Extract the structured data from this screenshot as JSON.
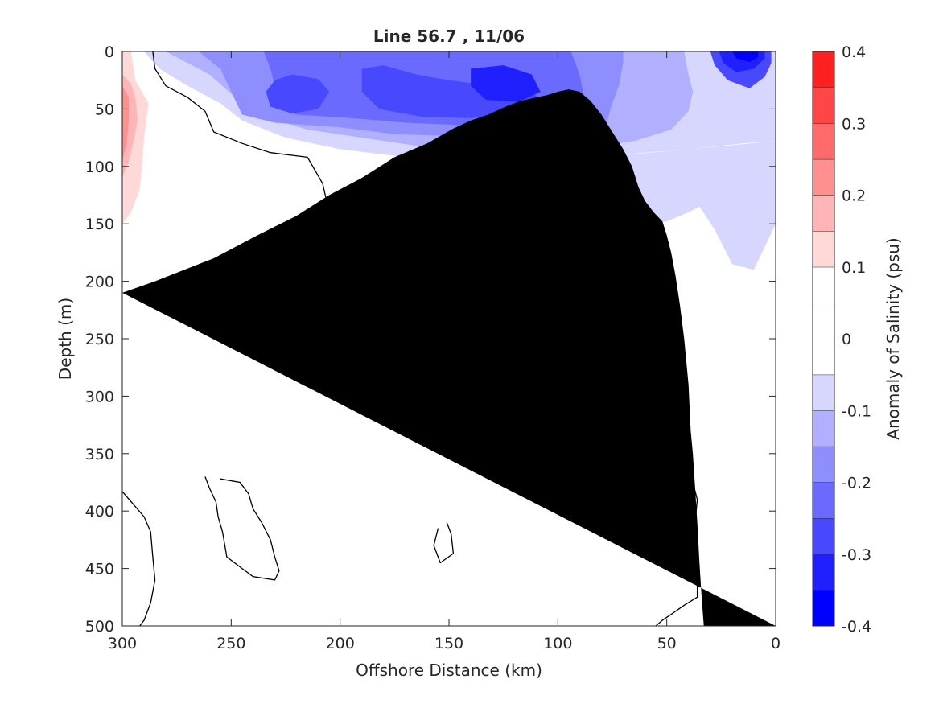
{
  "chart_data": {
    "type": "heatmap",
    "title": "Line 56.7 , 11/06",
    "xlabel": "Offshore Distance (km)",
    "ylabel": "Depth (m)",
    "xlim": [
      300,
      0
    ],
    "ylim": [
      500,
      0
    ],
    "x_ticks": [
      "300",
      "250",
      "200",
      "150",
      "100",
      "50",
      "0"
    ],
    "x_tick_values": [
      300,
      250,
      200,
      150,
      100,
      50,
      0
    ],
    "y_ticks": [
      "0",
      "50",
      "100",
      "150",
      "200",
      "250",
      "300",
      "350",
      "400",
      "450",
      "500"
    ],
    "y_tick_values": [
      0,
      50,
      100,
      150,
      200,
      250,
      300,
      350,
      400,
      450,
      500
    ],
    "colorbar": {
      "label": "Anomaly of Salinity (psu)",
      "min": -0.4,
      "max": 0.4,
      "tick_labels": [
        "0.4",
        "0.3",
        "0.2",
        "0.1",
        "0",
        "-0.1",
        "-0.2",
        "-0.3",
        "-0.4"
      ],
      "tick_values": [
        0.4,
        0.3,
        0.2,
        0.1,
        0,
        -0.1,
        -0.2,
        -0.3,
        -0.4
      ],
      "levels": [
        -0.4,
        -0.35,
        -0.3,
        -0.25,
        -0.2,
        -0.15,
        -0.1,
        -0.05,
        0.05,
        0.1,
        0.15,
        0.2,
        0.25,
        0.3,
        0.35,
        0.4
      ],
      "colors": [
        "#0000ff",
        "#2020ff",
        "#4848ff",
        "#6a6aff",
        "#8e8eff",
        "#b0b0ff",
        "#d6d6ff",
        "#ffffff",
        "#ffffff",
        "#ffd8d8",
        "#ffb5b5",
        "#ff9090",
        "#ff6a6a",
        "#ff4646",
        "#ff2020",
        "#ff0000"
      ]
    },
    "regions": [
      {
        "level": -0.075,
        "points": [
          [
            290,
            0
          ],
          [
            283,
            15
          ],
          [
            270,
            30
          ],
          [
            255,
            45
          ],
          [
            245,
            60
          ],
          [
            225,
            75
          ],
          [
            200,
            85
          ],
          [
            170,
            92
          ],
          [
            135,
            95
          ],
          [
            110,
            97
          ],
          [
            80,
            92
          ],
          [
            60,
            88
          ],
          [
            40,
            85
          ],
          [
            15,
            80
          ],
          [
            0,
            78
          ],
          [
            0,
            0
          ]
        ]
      },
      {
        "level": -0.125,
        "points": [
          [
            280,
            0
          ],
          [
            260,
            20
          ],
          [
            248,
            40
          ],
          [
            238,
            55
          ],
          [
            215,
            68
          ],
          [
            190,
            75
          ],
          [
            165,
            82
          ],
          [
            130,
            85
          ],
          [
            105,
            87
          ],
          [
            80,
            82
          ],
          [
            65,
            78
          ],
          [
            48,
            68
          ],
          [
            40,
            52
          ],
          [
            38,
            35
          ],
          [
            40,
            20
          ],
          [
            42,
            0
          ]
        ]
      },
      {
        "level": -0.175,
        "points": [
          [
            265,
            0
          ],
          [
            255,
            15
          ],
          [
            250,
            35
          ],
          [
            245,
            55
          ],
          [
            230,
            62
          ],
          [
            200,
            66
          ],
          [
            175,
            72
          ],
          [
            140,
            74
          ],
          [
            110,
            76
          ],
          [
            90,
            72
          ],
          [
            78,
            65
          ],
          [
            75,
            45
          ],
          [
            72,
            30
          ],
          [
            70,
            10
          ],
          [
            70,
            0
          ]
        ]
      },
      {
        "level": -0.225,
        "points": [
          [
            235,
            0
          ],
          [
            232,
            15
          ],
          [
            230,
            30
          ],
          [
            232,
            45
          ],
          [
            220,
            55
          ],
          [
            195,
            58
          ],
          [
            170,
            62
          ],
          [
            145,
            64
          ],
          [
            115,
            66
          ],
          [
            100,
            64
          ],
          [
            92,
            55
          ],
          [
            88,
            40
          ],
          [
            90,
            20
          ],
          [
            94,
            0
          ]
        ]
      },
      {
        "level": -0.275,
        "points": [
          [
            230,
            25
          ],
          [
            222,
            20
          ],
          [
            210,
            24
          ],
          [
            205,
            35
          ],
          [
            210,
            50
          ],
          [
            222,
            54
          ],
          [
            232,
            48
          ],
          [
            234,
            35
          ]
        ]
      },
      {
        "level": -0.275,
        "points": [
          [
            190,
            15
          ],
          [
            180,
            12
          ],
          [
            165,
            20
          ],
          [
            150,
            25
          ],
          [
            130,
            30
          ],
          [
            112,
            35
          ],
          [
            105,
            48
          ],
          [
            115,
            55
          ],
          [
            140,
            58
          ],
          [
            162,
            57
          ],
          [
            182,
            50
          ],
          [
            190,
            35
          ]
        ]
      },
      {
        "level": -0.325,
        "points": [
          [
            140,
            15
          ],
          [
            125,
            12
          ],
          [
            112,
            20
          ],
          [
            108,
            35
          ],
          [
            118,
            44
          ],
          [
            133,
            42
          ],
          [
            140,
            30
          ]
        ]
      },
      {
        "level": -0.275,
        "points": [
          [
            30,
            0
          ],
          [
            28,
            12
          ],
          [
            22,
            25
          ],
          [
            12,
            32
          ],
          [
            5,
            22
          ],
          [
            2,
            10
          ],
          [
            2,
            0
          ]
        ]
      },
      {
        "level": -0.325,
        "points": [
          [
            26,
            0
          ],
          [
            24,
            10
          ],
          [
            18,
            18
          ],
          [
            10,
            15
          ],
          [
            5,
            6
          ],
          [
            5,
            0
          ]
        ]
      },
      {
        "level": -0.375,
        "points": [
          [
            20,
            0
          ],
          [
            18,
            6
          ],
          [
            12,
            9
          ],
          [
            8,
            5
          ],
          [
            8,
            0
          ]
        ]
      },
      {
        "level": -0.075,
        "points": [
          [
            140,
            95
          ],
          [
            138,
            130
          ],
          [
            130,
            150
          ],
          [
            100,
            150
          ],
          [
            70,
            150
          ],
          [
            50,
            148
          ],
          [
            40,
            140
          ],
          [
            35,
            135
          ],
          [
            28,
            155
          ],
          [
            20,
            185
          ],
          [
            10,
            190
          ],
          [
            0,
            150
          ],
          [
            0,
            78
          ],
          [
            40,
            85
          ],
          [
            80,
            92
          ],
          [
            110,
            97
          ]
        ]
      },
      {
        "level": -0.075,
        "points": [
          [
            78,
            300
          ],
          [
            72,
            292
          ],
          [
            66,
            300
          ],
          [
            65,
            330
          ],
          [
            66,
            360
          ],
          [
            67,
            390
          ],
          [
            67,
            420
          ],
          [
            63,
            420
          ],
          [
            60,
            400
          ],
          [
            55,
            370
          ],
          [
            55,
            340
          ],
          [
            58,
            310
          ]
        ]
      },
      {
        "level": 0.075,
        "points": [
          [
            300,
            0
          ],
          [
            300,
            195
          ],
          [
            293,
            185
          ],
          [
            290,
            160
          ],
          [
            280,
            140
          ],
          [
            268,
            140
          ],
          [
            258,
            142
          ],
          [
            242,
            130
          ],
          [
            242,
            115
          ],
          [
            250,
            105
          ],
          [
            262,
            103
          ],
          [
            270,
            98
          ],
          [
            273,
            80
          ],
          [
            280,
            65
          ],
          [
            283,
            50
          ],
          [
            288,
            30
          ],
          [
            290,
            0
          ]
        ]
      },
      {
        "level": 0.125,
        "points": [
          [
            300,
            0
          ],
          [
            300,
            150
          ],
          [
            296,
            140
          ],
          [
            292,
            120
          ],
          [
            291,
            100
          ],
          [
            290,
            75
          ],
          [
            288,
            45
          ],
          [
            294,
            25
          ],
          [
            296,
            0
          ]
        ]
      },
      {
        "level": 0.175,
        "points": [
          [
            300,
            20
          ],
          [
            296,
            28
          ],
          [
            294,
            40
          ],
          [
            293,
            60
          ],
          [
            295,
            80
          ],
          [
            297,
            95
          ],
          [
            300,
            110
          ]
        ]
      },
      {
        "level": 0.225,
        "points": [
          [
            300,
            30
          ],
          [
            297,
            40
          ],
          [
            297,
            60
          ],
          [
            298,
            80
          ],
          [
            300,
            95
          ]
        ]
      }
    ],
    "contours_zero": [
      [
        [
          286,
          0
        ],
        [
          285,
          15
        ],
        [
          280,
          30
        ],
        [
          270,
          40
        ],
        [
          262,
          52
        ],
        [
          258,
          70
        ],
        [
          245,
          80
        ],
        [
          232,
          88
        ],
        [
          215,
          92
        ],
        [
          208,
          115
        ],
        [
          205,
          140
        ],
        [
          201,
          160
        ],
        [
          200,
          175
        ],
        [
          203,
          185
        ],
        [
          205,
          200
        ],
        [
          207,
          215
        ],
        [
          205,
          222
        ],
        [
          198,
          218
        ],
        [
          192,
          212
        ],
        [
          188,
          200
        ],
        [
          180,
          196
        ],
        [
          170,
          195
        ],
        [
          160,
          206
        ],
        [
          150,
          218
        ],
        [
          140,
          228
        ],
        [
          135,
          245
        ],
        [
          132,
          265
        ],
        [
          128,
          280
        ],
        [
          122,
          300
        ],
        [
          115,
          310
        ],
        [
          108,
          315
        ],
        [
          105,
          322
        ],
        [
          100,
          333
        ],
        [
          92,
          340
        ],
        [
          86,
          348
        ],
        [
          78,
          355
        ],
        [
          70,
          352
        ],
        [
          64,
          358
        ],
        [
          57,
          364
        ],
        [
          45,
          368
        ],
        [
          38,
          375
        ],
        [
          36,
          390
        ],
        [
          37,
          410
        ],
        [
          40,
          425
        ],
        [
          38,
          440
        ],
        [
          36,
          460
        ],
        [
          36,
          475
        ],
        [
          42,
          482
        ],
        [
          48,
          490
        ],
        [
          52,
          495
        ],
        [
          55,
          500
        ]
      ],
      [
        [
          151,
          410
        ],
        [
          149,
          420
        ],
        [
          148,
          437
        ],
        [
          154,
          445
        ],
        [
          157,
          430
        ],
        [
          155,
          415
        ]
      ],
      [
        [
          142,
          203
        ],
        [
          137,
          203
        ],
        [
          132,
          215
        ],
        [
          129,
          230
        ],
        [
          128,
          248
        ],
        [
          129,
          262
        ],
        [
          130,
          278
        ],
        [
          138,
          284
        ],
        [
          148,
          282
        ],
        [
          152,
          268
        ],
        [
          150,
          250
        ],
        [
          150,
          232
        ],
        [
          148,
          215
        ]
      ],
      [
        [
          300,
          383
        ],
        [
          295,
          394
        ],
        [
          290,
          405
        ],
        [
          287,
          418
        ],
        [
          286,
          440
        ],
        [
          285,
          460
        ],
        [
          287,
          480
        ],
        [
          290,
          495
        ],
        [
          292,
          500
        ]
      ],
      [
        [
          262,
          370
        ],
        [
          260,
          380
        ],
        [
          257,
          392
        ],
        [
          256,
          405
        ],
        [
          254,
          418
        ],
        [
          252,
          440
        ],
        [
          245,
          450
        ],
        [
          240,
          457
        ],
        [
          230,
          460
        ],
        [
          228,
          452
        ],
        [
          230,
          440
        ],
        [
          232,
          425
        ],
        [
          236,
          410
        ],
        [
          240,
          398
        ],
        [
          242,
          385
        ],
        [
          246,
          375
        ],
        [
          255,
          372
        ]
      ]
    ],
    "coastline": [
      [
        33,
        500
      ],
      [
        34,
        475
      ],
      [
        35,
        445
      ],
      [
        36,
        410
      ],
      [
        37,
        380
      ],
      [
        38,
        350
      ],
      [
        39,
        330
      ],
      [
        40,
        290
      ],
      [
        42,
        250
      ],
      [
        44,
        220
      ],
      [
        46,
        195
      ],
      [
        48,
        175
      ],
      [
        50,
        160
      ],
      [
        52,
        148
      ],
      [
        56,
        140
      ],
      [
        60,
        130
      ],
      [
        63,
        118
      ],
      [
        66,
        100
      ],
      [
        70,
        85
      ],
      [
        75,
        70
      ],
      [
        80,
        55
      ],
      [
        85,
        43
      ],
      [
        90,
        35
      ],
      [
        95,
        33
      ],
      [
        100,
        35
      ],
      [
        105,
        38
      ],
      [
        110,
        40
      ],
      [
        117,
        43
      ],
      [
        124,
        48
      ],
      [
        132,
        55
      ],
      [
        140,
        60
      ],
      [
        148,
        67
      ],
      [
        160,
        80
      ],
      [
        175,
        92
      ],
      [
        190,
        110
      ],
      [
        205,
        125
      ],
      [
        220,
        143
      ],
      [
        238,
        160
      ],
      [
        258,
        180
      ],
      [
        285,
        200
      ],
      [
        300,
        210
      ]
    ]
  }
}
